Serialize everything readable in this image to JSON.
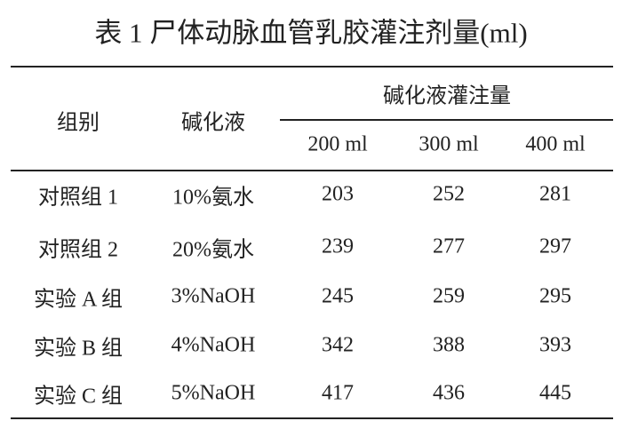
{
  "title": "表 1 尸体动脉血管乳胶灌注剂量(ml)",
  "table": {
    "header": {
      "group": "组别",
      "solution": "碱化液",
      "volume_group": "碱化液灌注量",
      "volumes": [
        "200 ml",
        "300 ml",
        "400 ml"
      ]
    },
    "rows": [
      [
        "对照组 1",
        "10%氨水",
        203,
        252,
        281
      ],
      [
        "对照组 2",
        "20%氨水",
        239,
        277,
        297
      ],
      [
        "实验 A 组",
        "3%NaOH",
        245,
        259,
        295
      ],
      [
        "实验 B 组",
        "4%NaOH",
        342,
        388,
        393
      ],
      [
        "实验 C 组",
        "5%NaOH",
        417,
        436,
        445
      ]
    ]
  }
}
